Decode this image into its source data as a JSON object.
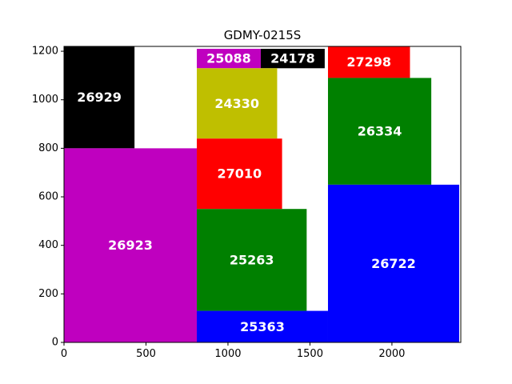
{
  "chart_data": {
    "type": "rectangle-packing",
    "title": "GDMY-0215S",
    "xlim": [
      0,
      2420
    ],
    "ylim": [
      0,
      1220
    ],
    "xticks": [
      0,
      500,
      1000,
      1500,
      2000
    ],
    "yticks": [
      0,
      200,
      400,
      600,
      800,
      1000,
      1200
    ],
    "grid": false,
    "rectangles": [
      {
        "label": "26929",
        "x": 0,
        "y": 800,
        "w": 430,
        "h": 420,
        "color": "#000000"
      },
      {
        "label": "26923",
        "x": 0,
        "y": 0,
        "w": 810,
        "h": 800,
        "color": "#bf00bf"
      },
      {
        "label": "25088",
        "x": 810,
        "y": 1130,
        "w": 390,
        "h": 80,
        "color": "#bf00bf"
      },
      {
        "label": "24178",
        "x": 1200,
        "y": 1130,
        "w": 390,
        "h": 80,
        "color": "#000000"
      },
      {
        "label": "24330",
        "x": 810,
        "y": 840,
        "w": 490,
        "h": 290,
        "color": "#bfbf00"
      },
      {
        "label": "27010",
        "x": 810,
        "y": 550,
        "w": 520,
        "h": 290,
        "color": "#ff0000"
      },
      {
        "label": "25263",
        "x": 810,
        "y": 130,
        "w": 670,
        "h": 420,
        "color": "#008000"
      },
      {
        "label": "25363",
        "x": 810,
        "y": 0,
        "w": 800,
        "h": 130,
        "color": "#0000ff"
      },
      {
        "label": "27298",
        "x": 1610,
        "y": 1090,
        "w": 500,
        "h": 130,
        "color": "#ff0000"
      },
      {
        "label": "26334",
        "x": 1610,
        "y": 650,
        "w": 630,
        "h": 440,
        "color": "#008000"
      },
      {
        "label": "26722",
        "x": 1610,
        "y": 0,
        "w": 800,
        "h": 650,
        "color": "#0000ff"
      }
    ]
  }
}
